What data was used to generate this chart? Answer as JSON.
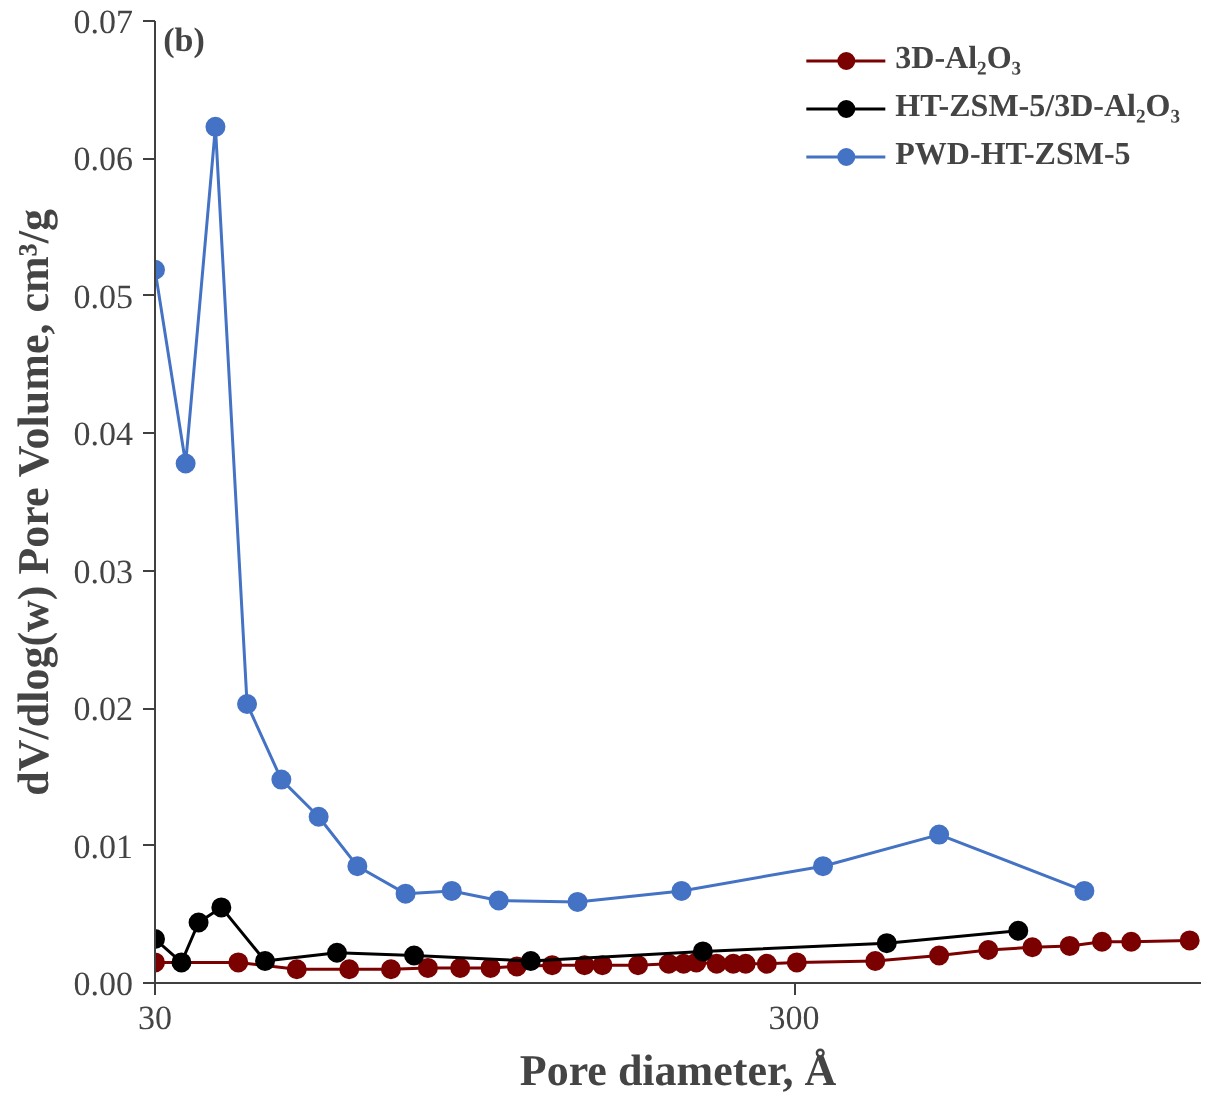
{
  "chart_data": {
    "type": "line",
    "xlabel": "Pore diameter, Å",
    "ylabel": "dV/dlog(w) Pore Volume, cm³/g",
    "annotations": [
      "(b)"
    ],
    "log": "x",
    "xlim": [
      30,
      1300
    ],
    "xticks": [
      30,
      300
    ],
    "ylim": [
      0,
      0.07
    ],
    "yticks": [
      {
        "value": 0,
        "label": "0.00"
      },
      {
        "value": 0.01,
        "label": "0.01"
      },
      {
        "value": 0.02,
        "label": "0.02"
      },
      {
        "value": 0.03,
        "label": "0.03"
      },
      {
        "value": 0.04,
        "label": "0.04"
      },
      {
        "value": 0.05,
        "label": "0.05"
      },
      {
        "value": 0.06,
        "label": "0.06"
      },
      {
        "value": 0.07,
        "label": "0.07"
      }
    ],
    "grid": false,
    "legend": "top right",
    "marker": "circle",
    "line_style": "solid",
    "series": [
      {
        "name": "3D-Al₂O₃",
        "color": "#7b0000",
        "x": [
          30,
          40.5,
          50,
          60.4,
          70.2,
          80.2,
          90.1,
          100.5,
          110.5,
          125.5,
          141,
          150.4,
          171,
          191,
          201.5,
          211,
          227,
          241,
          252,
          272,
          303,
          402,
          506,
          604,
          708,
          810,
          910,
          1011,
          1248
        ],
        "values": [
          0.0015,
          0.0015,
          0.001,
          0.001,
          0.001,
          0.0011,
          0.0011,
          0.0011,
          0.0012,
          0.0013,
          0.0013,
          0.0013,
          0.0013,
          0.0014,
          0.0014,
          0.0015,
          0.0014,
          0.0014,
          0.0014,
          0.0014,
          0.0015,
          0.0016,
          0.002,
          0.0024,
          0.0026,
          0.0027,
          0.003,
          0.003,
          0.0031
        ]
      },
      {
        "name": "HT-ZSM-5/3D-Al₂O₃",
        "color": "#000000",
        "x": [
          30,
          33,
          35.1,
          38.1,
          44.6,
          57.8,
          76.3,
          116.2,
          216,
          419,
          673
        ],
        "values": [
          0.0032,
          0.0015,
          0.0044,
          0.0055,
          0.0016,
          0.0022,
          0.002,
          0.0016,
          0.0023,
          0.0029,
          0.0038
        ]
      },
      {
        "name": "PWD-HT-ZSM-5",
        "color": "#4472c4",
        "x": [
          30,
          33.5,
          37.3,
          41.8,
          47.3,
          54.1,
          62.2,
          74,
          87.4,
          103.5,
          137.5,
          200,
          333,
          506,
          854
        ],
        "values": [
          0.0519,
          0.0378,
          0.0623,
          0.0203,
          0.0148,
          0.0121,
          0.0085,
          0.0065,
          0.0067,
          0.006,
          0.0059,
          0.0067,
          0.0085,
          0.0108,
          0.0067
        ]
      }
    ]
  }
}
